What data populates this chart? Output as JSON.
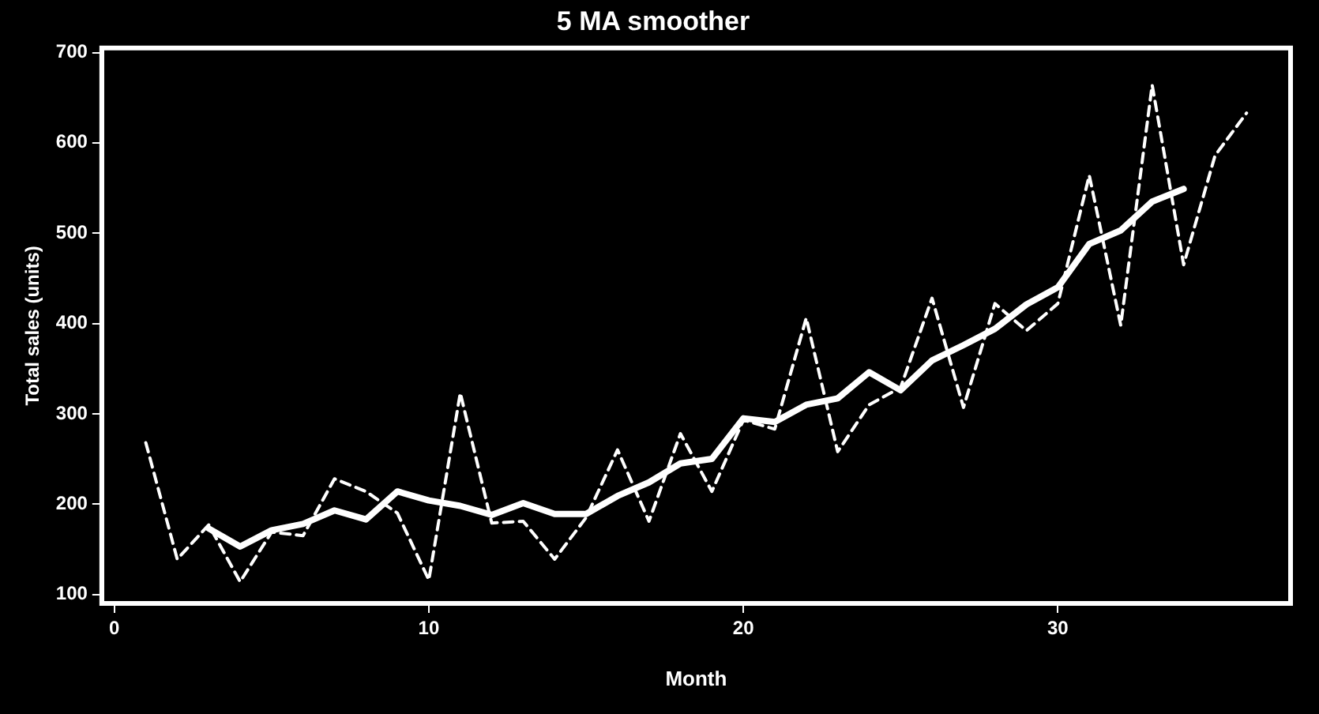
{
  "chart_data": {
    "type": "line",
    "title": "5 MA smoother",
    "xlabel": "Month",
    "ylabel": "Total sales (units)",
    "xlim": [
      -0.4,
      37.4
    ],
    "xticks": [
      0,
      10,
      20,
      30
    ],
    "ylim": [
      90,
      705
    ],
    "yticks": [
      100,
      200,
      300,
      400,
      500,
      600,
      700
    ],
    "grid": false,
    "legend": false,
    "marker": "none",
    "series": [
      {
        "color": "#ffffff",
        "line_style": "dashed",
        "x": [
          1,
          2,
          3,
          4,
          5,
          6,
          7,
          8,
          9,
          10,
          11,
          12,
          13,
          14,
          15,
          16,
          17,
          18,
          19,
          20,
          21,
          22,
          23,
          24,
          25,
          26,
          27,
          28,
          29,
          30,
          31,
          32,
          33,
          34,
          35,
          36
        ],
        "values": [
          268,
          139,
          177,
          114,
          169,
          165,
          228,
          214,
          190,
          116,
          323,
          179,
          181,
          139,
          185,
          260,
          181,
          278,
          214,
          293,
          283,
          406,
          258,
          310,
          329,
          428,
          307,
          422,
          392,
          422,
          564,
          398,
          664,
          465,
          586,
          633
        ]
      },
      {
        "color": "#ffffff",
        "line_style": "solid",
        "x": [
          3,
          4,
          5,
          6,
          7,
          8,
          9,
          10,
          11,
          12,
          13,
          14,
          15,
          16,
          17,
          18,
          19,
          20,
          21,
          22,
          23,
          24,
          25,
          26,
          27,
          28,
          29,
          30,
          31,
          32,
          33,
          34
        ],
        "values": [
          173,
          153,
          171,
          178,
          193,
          183,
          214,
          204,
          198,
          188,
          201,
          189,
          189,
          209,
          224,
          245,
          250,
          295,
          291,
          310,
          317,
          346,
          326,
          359,
          376,
          394,
          421,
          440,
          488,
          503,
          535,
          549
        ]
      }
    ]
  }
}
